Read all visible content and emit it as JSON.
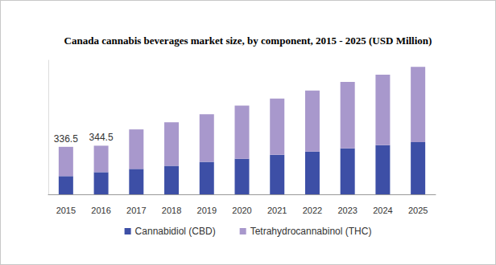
{
  "chart_data": {
    "type": "bar",
    "title": "Canada cannabis beverages market size, by component, 2015 - 2025 (USD Million)",
    "categories": [
      "2015",
      "2016",
      "2017",
      "2018",
      "2019",
      "2020",
      "2021",
      "2022",
      "2023",
      "2024",
      "2025"
    ],
    "series": [
      {
        "name": "Cannabidiol (CBD)",
        "color": "#3d4fa6",
        "values": [
          129,
          157,
          180,
          202,
          230,
          252,
          280,
          303,
          325,
          348,
          370
        ]
      },
      {
        "name": "Tetrahydrocannabinol (THC)",
        "color": "#a898cc",
        "values": [
          207.5,
          187.5,
          280,
          308,
          337,
          376,
          399,
          432,
          472,
          499,
          533
        ]
      }
    ],
    "annotations": [
      {
        "x": "2015",
        "y": 336.5,
        "text": "336.5"
      },
      {
        "x": "2016",
        "y": 344.5,
        "text": "344.5"
      }
    ],
    "ylim": [
      0,
      950
    ],
    "yticks": [],
    "stacked": true,
    "grid": false,
    "legend": "bottom",
    "tick_labels": "x"
  }
}
